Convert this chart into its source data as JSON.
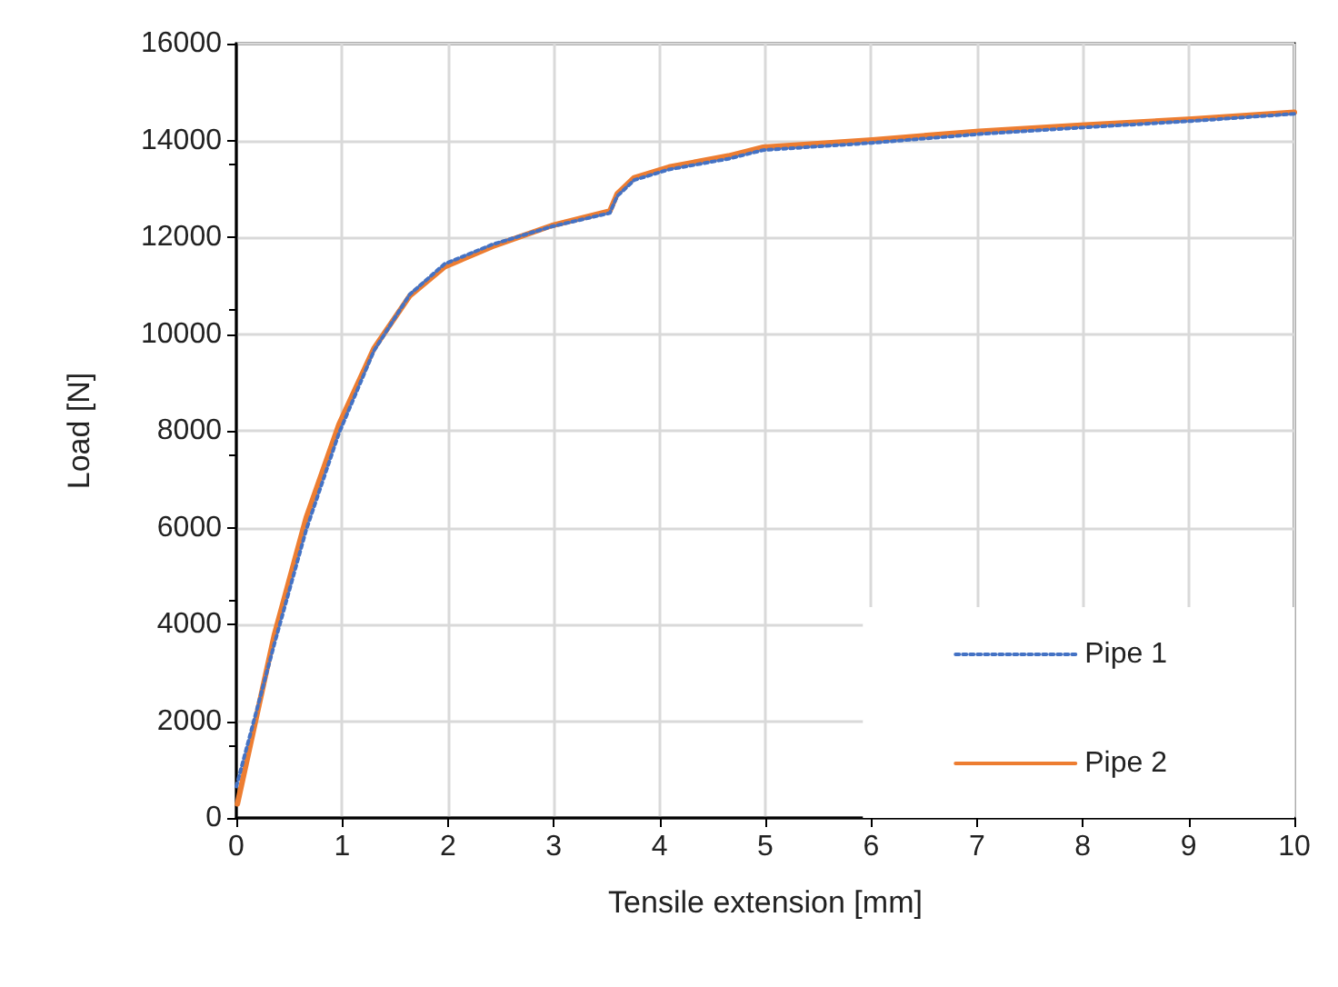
{
  "chart_data": {
    "type": "line",
    "xlabel": "Tensile extension [mm]",
    "ylabel": "Load [N]",
    "xlim": [
      0,
      10
    ],
    "xticks": [
      0,
      1,
      2,
      3,
      4,
      5,
      6,
      7,
      8,
      9,
      10
    ],
    "ylim": [
      0,
      16000
    ],
    "yticks": [
      0,
      2000,
      4000,
      6000,
      8000,
      10000,
      12000,
      14000,
      16000
    ],
    "grid": true,
    "legend": "bottom right",
    "marker": "none",
    "series": [
      {
        "name": "Pipe 1",
        "color": "#4472c4",
        "line_style": "dotted",
        "x": [
          0,
          0.36,
          0.66,
          0.97,
          1.3,
          1.64,
          1.97,
          2.42,
          2.98,
          3.53,
          3.6,
          3.76,
          4.09,
          4.65,
          4.98,
          6.01,
          7.02,
          8.02,
          9.03,
          10
        ],
        "values": [
          650,
          3600,
          5950,
          7950,
          9650,
          10820,
          11450,
          11850,
          12220,
          12500,
          12850,
          13180,
          13400,
          13620,
          13800,
          13950,
          14130,
          14270,
          14400,
          14550
        ]
      },
      {
        "name": "Pipe 2",
        "color": "#ed7d31",
        "line_style": "solid",
        "x": [
          0.01,
          0.36,
          0.66,
          0.97,
          1.3,
          1.64,
          1.97,
          2.42,
          2.98,
          3.53,
          3.6,
          3.76,
          4.09,
          4.65,
          4.98,
          6.01,
          7.02,
          8.02,
          9.03,
          10
        ],
        "values": [
          290,
          3790,
          6200,
          8130,
          9700,
          10790,
          11390,
          11810,
          12240,
          12540,
          12900,
          13230,
          13450,
          13680,
          13860,
          14010,
          14190,
          14320,
          14440,
          14580
        ]
      }
    ]
  }
}
